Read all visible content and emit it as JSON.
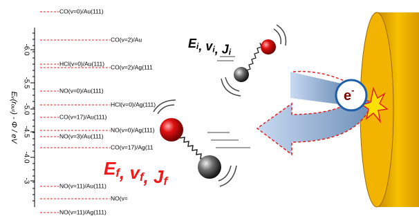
{
  "axis": {
    "label": "Eᵥ(rₒᵤₜ) - Φ / eV",
    "ticks": [
      "-6.0",
      "-5.5",
      "-5.0",
      "-4.5",
      "-4.0",
      "-3"
    ]
  },
  "levels": [
    {
      "label": "CO(v=0)/Au(111)"
    },
    {
      "label": "CO(v=2)/Au"
    },
    {
      "label": "HCl(v=0)/Au(111)"
    },
    {
      "label": "CO(v=2)/Ag(111"
    },
    {
      "label": "NO(v=0)/Au(111)"
    },
    {
      "label": "HCl(v=0)/Ag(111)"
    },
    {
      "label": "CO(v=17)/Au(111)"
    },
    {
      "label": "NO(v=0)/Ag(111)"
    },
    {
      "label": "NO(v=3)/Au(111)"
    },
    {
      "label": "CO(v=17)/Ag(11"
    },
    {
      "label": "NO(v=11)/Au(111)"
    },
    {
      "label": "NO(v="
    },
    {
      "label": "NO(v=11)/Ag(111)"
    }
  ],
  "incident": {
    "parts": [
      {
        "text": "E",
        "sub": "i"
      },
      {
        "text": ", v",
        "sub": "i"
      },
      {
        "text": ", J",
        "sub": "i"
      }
    ]
  },
  "final": {
    "parts": [
      {
        "text": "E",
        "sub": "f"
      },
      {
        "text": ", v",
        "sub": "f"
      },
      {
        "text": ", J",
        "sub": "f"
      }
    ]
  },
  "electron": {
    "text": "e",
    "sup": "-"
  }
}
